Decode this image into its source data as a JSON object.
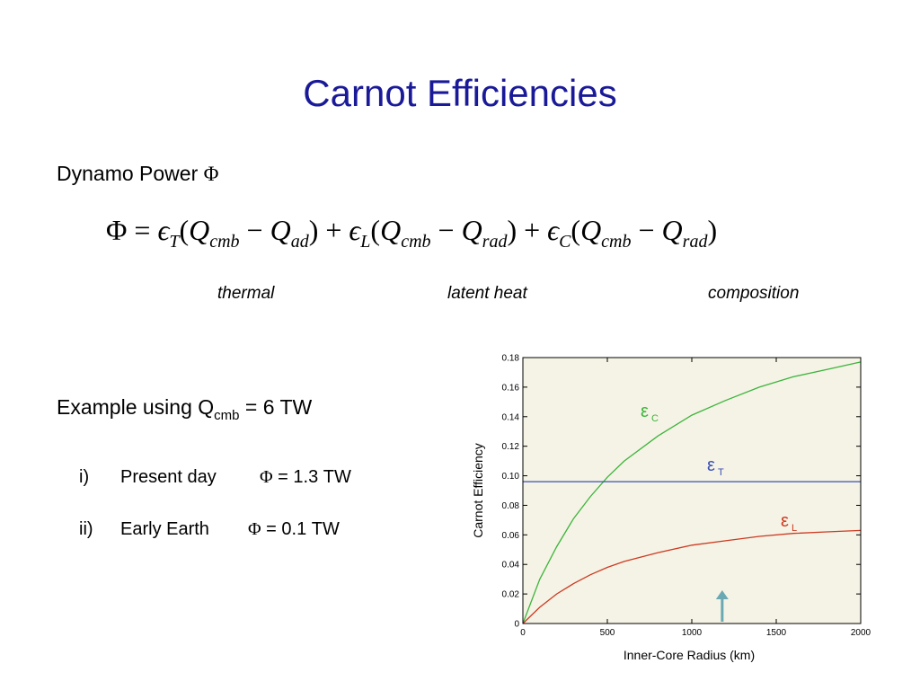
{
  "slide": {
    "title": "Carnot Efficiencies",
    "dynamo_label": "Dynamo Power",
    "phi_symbol": "Φ",
    "equation": {
      "phi": "Φ",
      "eq": " = ",
      "eps": "ϵ",
      "T": "T",
      "L": "L",
      "C": "C",
      "Q": "Q",
      "cmb": "cmb",
      "ad": "ad",
      "rad": "rad",
      "open": "(",
      "close": ")",
      "minus": " − ",
      "plus": " + "
    },
    "term_labels": [
      "thermal",
      "latent heat",
      "composition"
    ],
    "example": {
      "prefix": "Example using  Q",
      "sub": "cmb",
      "suffix": " = 6 TW"
    },
    "items": [
      {
        "num": "i)",
        "text": "Present day",
        "phi": "Φ",
        "value": " = 1.3 TW"
      },
      {
        "num": "ii)",
        "text": "Early Earth",
        "phi": "Φ",
        "value": " = 0.1 TW"
      }
    ]
  },
  "chart_data": {
    "type": "line",
    "xlabel": "Inner-Core Radius   (km)",
    "ylabel": "Carnot Efficiency",
    "xlim": [
      0,
      2000
    ],
    "ylim": [
      0,
      0.18
    ],
    "x_ticks": [
      "0",
      "500",
      "1000",
      "1500",
      "2000"
    ],
    "y_ticks": [
      "0",
      "0.02",
      "0.04",
      "0.06",
      "0.08",
      "0.10",
      "0.12",
      "0.14",
      "0.16",
      "0.18"
    ],
    "background": "#f5f3e5",
    "series": [
      {
        "name": "ε",
        "subscript": "C",
        "color": "#3cb43c",
        "x": [
          0,
          100,
          200,
          300,
          400,
          500,
          600,
          800,
          1000,
          1200,
          1400,
          1600,
          1800,
          2000
        ],
        "y": [
          0,
          0.03,
          0.052,
          0.071,
          0.086,
          0.099,
          0.11,
          0.127,
          0.141,
          0.151,
          0.16,
          0.167,
          0.172,
          0.177
        ]
      },
      {
        "name": "ε",
        "subscript": "T",
        "color": "#3a4fb4",
        "x": [
          0,
          2000
        ],
        "y": [
          0.096,
          0.096
        ]
      },
      {
        "name": "ε",
        "subscript": "L",
        "color": "#cc3a22",
        "x": [
          0,
          100,
          200,
          300,
          400,
          500,
          600,
          800,
          1000,
          1200,
          1400,
          1600,
          1800,
          2000
        ],
        "y": [
          0,
          0.011,
          0.02,
          0.027,
          0.033,
          0.038,
          0.042,
          0.048,
          0.053,
          0.056,
          0.059,
          0.061,
          0.062,
          0.063
        ]
      }
    ],
    "arrow": {
      "x": 1180,
      "color": "#6aa8b4"
    }
  }
}
